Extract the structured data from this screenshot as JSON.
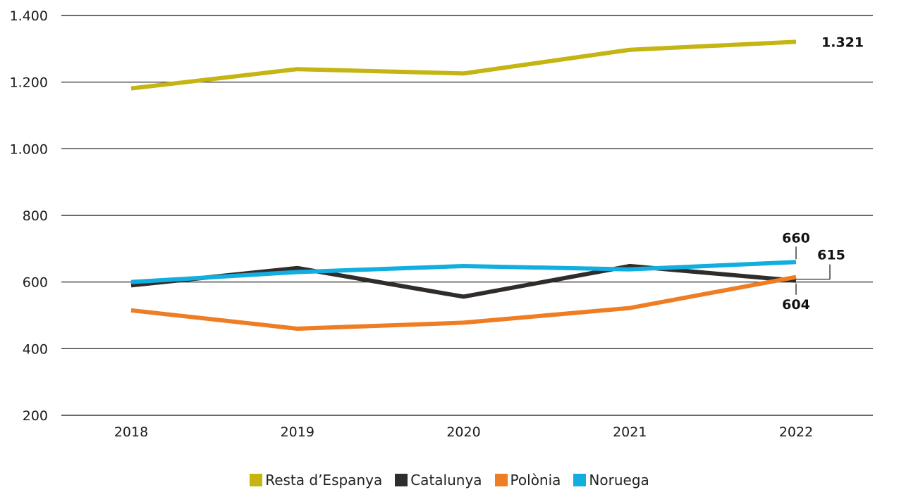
{
  "chart_data": {
    "type": "line",
    "title": "",
    "xlabel": "",
    "ylabel": "",
    "x": [
      "2018",
      "2019",
      "2020",
      "2021",
      "2022"
    ],
    "ylim": [
      200,
      1400
    ],
    "yticks": [
      200,
      400,
      600,
      800,
      1000,
      1200,
      1400
    ],
    "ytick_labels": [
      "200",
      "400",
      "600",
      "800",
      "1.000",
      "1.200",
      "1.400"
    ],
    "grid": true,
    "legend_position": "bottom-center",
    "series": [
      {
        "name": "Resta d’Espanya",
        "color": "#c4b512",
        "values": [
          1181,
          1239,
          1226,
          1297,
          1321
        ],
        "end_label": "1.321"
      },
      {
        "name": "Catalunya",
        "color": "#302c2a",
        "values": [
          590,
          642,
          556,
          648,
          604
        ],
        "end_label": "604"
      },
      {
        "name": "Polònia",
        "color": "#ee7d23",
        "values": [
          515,
          460,
          478,
          522,
          615
        ],
        "end_label": "615"
      },
      {
        "name": "Noruega",
        "color": "#12aee0",
        "values": [
          600,
          630,
          648,
          638,
          660
        ],
        "end_label": "660"
      }
    ]
  }
}
